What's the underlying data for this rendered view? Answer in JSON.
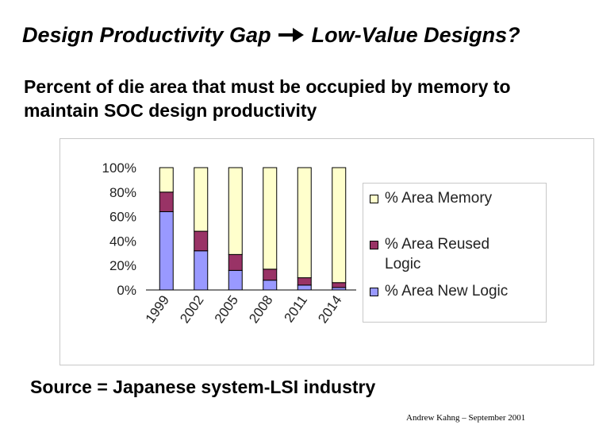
{
  "slide": {
    "title_part1": "Design Productivity Gap",
    "title_part2": "Low-Value Designs?",
    "subtitle_line1": "Percent of die area that must be occupied by memory to",
    "subtitle_line2": "maintain SOC design productivity",
    "source": "Source = Japanese system-LSI industry",
    "footer": "Andrew Kahng – September 2001",
    "arrow_icon": "right-arrow-icon"
  },
  "chart_data": {
    "type": "bar",
    "stacked": true,
    "percent": true,
    "categories": [
      "1999",
      "2002",
      "2005",
      "2008",
      "2011",
      "2014"
    ],
    "series": [
      {
        "name": "% Area New Logic",
        "color": "#9999ff",
        "values": [
          64,
          32,
          16,
          8,
          4,
          2
        ]
      },
      {
        "name": "% Area Reused Logic",
        "color": "#993366",
        "values": [
          16,
          16,
          13,
          9,
          6,
          4
        ]
      },
      {
        "name": "% Area Memory",
        "color": "#ffffcc",
        "values": [
          20,
          52,
          71,
          83,
          90,
          94
        ]
      }
    ],
    "legend_order": [
      "% Area Memory",
      "% Area Reused Logic",
      "% Area New Logic"
    ],
    "yticks": [
      "0%",
      "20%",
      "40%",
      "60%",
      "80%",
      "100%"
    ],
    "ylim": [
      0,
      100
    ],
    "grid": false,
    "legend_position": "right"
  }
}
